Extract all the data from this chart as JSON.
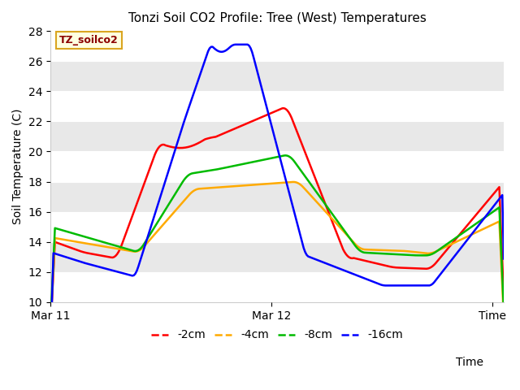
{
  "title": "Tonzi Soil CO2 Profile: Tree (West) Temperatures",
  "ylabel": "Soil Temperature (C)",
  "xlabel": "Time",
  "ylim": [
    10,
    28
  ],
  "yticks": [
    10,
    12,
    14,
    16,
    18,
    20,
    22,
    24,
    26,
    28
  ],
  "xtick_labels": [
    "Mar 11",
    "Mar 12",
    "Time"
  ],
  "xtick_positions": [
    0.0,
    1.0,
    2.0
  ],
  "xlim": [
    0.0,
    2.05
  ],
  "legend_label": "TZ_soilco2",
  "plot_bg_color": "#e8e8e8",
  "grid_color": "#ffffff",
  "series_colors": {
    "-2cm": "#ff0000",
    "-4cm": "#ffaa00",
    "-8cm": "#00bb00",
    "-16cm": "#0000ff"
  }
}
